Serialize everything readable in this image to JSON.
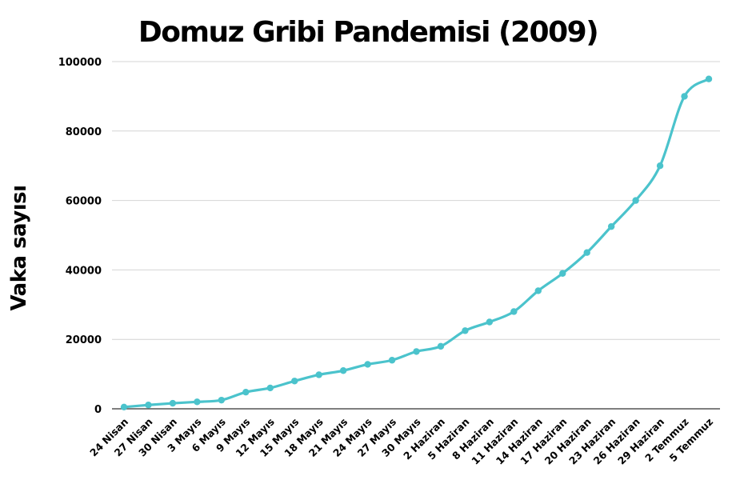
{
  "chart_data": {
    "type": "line",
    "title": "Domuz Gribi Pandemisi (2009)",
    "xlabel": "",
    "ylabel": "Vaka sayısı",
    "x": [
      "24 Nisan",
      "27 Nisan",
      "30 Nisan",
      "3 Mayıs",
      "6 Mayıs",
      "9 Mayıs",
      "12 Mayıs",
      "15 Mayıs",
      "18 Mayıs",
      "21 Mayıs",
      "24 Mayıs",
      "27 Mayıs",
      "30 Mayıs",
      "2 Haziran",
      "5 Haziran",
      "8 Haziran",
      "11 Haziran",
      "14 Haziran",
      "17 Haziran",
      "20 Haziran",
      "23 Haziran",
      "26 Haziran",
      "29 Haziran",
      "2 Temmuz",
      "5 Temmuz"
    ],
    "values": [
      500,
      1100,
      1600,
      2000,
      2500,
      4800,
      6000,
      8000,
      9800,
      11000,
      12800,
      14000,
      16500,
      18000,
      22500,
      25000,
      28000,
      34000,
      39000,
      45000,
      52500,
      60000,
      70000,
      90000,
      95000
    ],
    "ylim": [
      0,
      100000
    ],
    "yticks": [
      "0",
      "20000",
      "40000",
      "60000",
      "80000",
      "100000"
    ],
    "grid": true,
    "legend": "none",
    "line_color": "#4bc3cc"
  }
}
